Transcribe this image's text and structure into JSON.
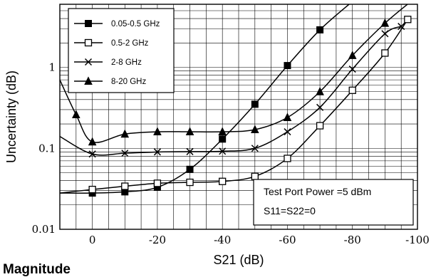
{
  "chart_data": {
    "type": "line",
    "xlabel": "S21 (dB)",
    "ylabel": "Uncertainty (dB)",
    "caption": "Magnitude",
    "xlim": [
      10,
      -100
    ],
    "ylim": [
      0.01,
      6
    ],
    "yscale": "log",
    "x_ticks": [
      0,
      -20,
      -40,
      -60,
      -80,
      -100
    ],
    "x_tick_labels": [
      "0",
      "-20",
      "-40",
      "-60",
      "-80",
      "-100"
    ],
    "y_ticks": [
      0.01,
      0.1,
      1
    ],
    "y_tick_labels": [
      "0.01",
      "0.1",
      "1"
    ],
    "grid": true,
    "legend_position": "top-left",
    "annotations": [
      "Test Port Power =5 dBm",
      "S11=S22=0"
    ],
    "series": [
      {
        "name": "0.05-0.5 GHz",
        "marker": "filled-square",
        "x": [
          10,
          0,
          -10,
          -20,
          -30,
          -40,
          -50,
          -60,
          -70,
          -80
        ],
        "y": [
          0.028,
          0.028,
          0.029,
          0.033,
          0.055,
          0.13,
          0.35,
          1.05,
          2.9,
          6.5
        ]
      },
      {
        "name": "0.5-2 GHz",
        "marker": "open-square",
        "x": [
          10,
          0,
          -10,
          -20,
          -30,
          -40,
          -50,
          -60,
          -70,
          -80,
          -90,
          -97
        ],
        "y": [
          0.028,
          0.031,
          0.034,
          0.037,
          0.038,
          0.039,
          0.045,
          0.075,
          0.19,
          0.52,
          1.5,
          3.9
        ]
      },
      {
        "name": "2-8 GHz",
        "marker": "cross",
        "x": [
          10,
          0,
          -10,
          -20,
          -30,
          -40,
          -50,
          -60,
          -70,
          -80,
          -90,
          -95
        ],
        "y": [
          0.14,
          0.085,
          0.087,
          0.09,
          0.091,
          0.092,
          0.1,
          0.16,
          0.32,
          0.95,
          2.6,
          3.2
        ]
      },
      {
        "name": "8-20 GHz",
        "marker": "filled-triangle",
        "x": [
          10,
          5,
          0,
          -10,
          -20,
          -30,
          -40,
          -50,
          -60,
          -70,
          -80,
          -90,
          -98
        ],
        "y": [
          0.7,
          0.26,
          0.12,
          0.15,
          0.16,
          0.16,
          0.16,
          0.17,
          0.24,
          0.5,
          1.4,
          3.5,
          6.5
        ]
      }
    ]
  }
}
